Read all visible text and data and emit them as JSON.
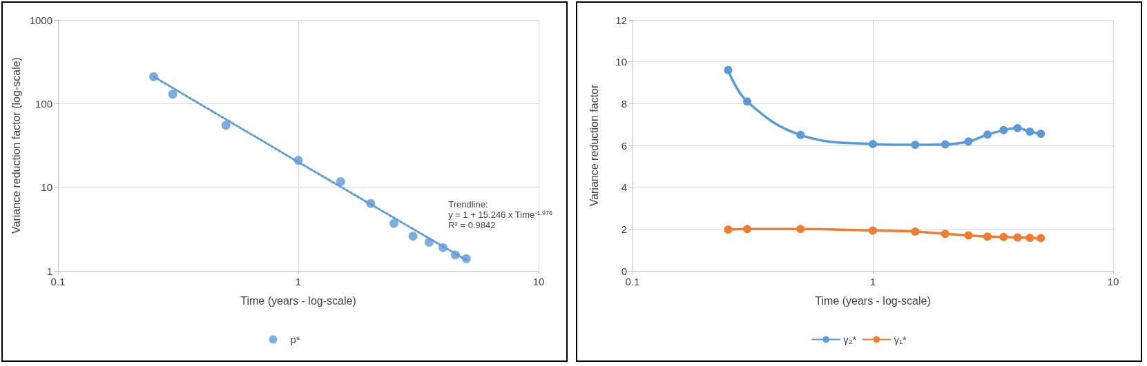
{
  "chart_data": [
    {
      "type": "scatter",
      "xlabel": "Time (years - log-scale)",
      "ylabel": "Variance reduction factor (log-scale)",
      "log": "xy",
      "xlim": [
        0.1,
        10
      ],
      "xticks": [
        0.1,
        1,
        10
      ],
      "ylim": [
        1,
        1000
      ],
      "yticks": [
        1,
        10,
        100,
        1000
      ],
      "grid": true,
      "legend": "bottom",
      "marker": "circle",
      "annotations": [
        "Trendline:",
        "y = 1 + 15.246 x Time$^{-1.976}$",
        "R² = 0.9842"
      ],
      "series": [
        {
          "name": "p*",
          "color": "#5b9bd5",
          "x": [
            0.25,
            0.3,
            0.5,
            1,
            1.5,
            2,
            2.5,
            3,
            3.5,
            4,
            4.5,
            5
          ],
          "values": [
            210,
            130,
            55,
            21,
            11.7,
            6.4,
            3.7,
            2.6,
            2.2,
            1.9,
            1.55,
            1.4
          ]
        },
        {
          "type": "line",
          "color": "#5b9bd5",
          "line_style": "dotted",
          "marker": "none",
          "x": [
            0.25,
            1,
            5
          ],
          "values": [
            210,
            20,
            1.35
          ]
        }
      ]
    },
    {
      "type": "line",
      "xlabel": "Time (years - log-scale)",
      "ylabel": "Variance reduction factor",
      "log": "x",
      "xlim": [
        0.1,
        10
      ],
      "xticks": [
        0.1,
        1,
        10
      ],
      "ylim": [
        0,
        12
      ],
      "yticks": [
        0,
        2,
        4,
        6,
        8,
        10,
        12
      ],
      "grid": true,
      "legend": "bottom",
      "marker": "circle",
      "line_style": "solid",
      "x": [
        0.25,
        0.3,
        0.5,
        1,
        1.5,
        2,
        2.5,
        3,
        3.5,
        4,
        4.5,
        5
      ],
      "series": [
        {
          "name": "γ₂*",
          "color": "#5b9bd5",
          "values": [
            9.6,
            8.1,
            6.5,
            6.07,
            6.03,
            6.05,
            6.19,
            6.52,
            6.73,
            6.83,
            6.66,
            6.56
          ]
        },
        {
          "name": "γ₁*",
          "color": "#ed7d31",
          "values": [
            1.98,
            2.0,
            2.0,
            1.93,
            1.88,
            1.77,
            1.7,
            1.64,
            1.62,
            1.6,
            1.58,
            1.57
          ]
        }
      ]
    }
  ]
}
